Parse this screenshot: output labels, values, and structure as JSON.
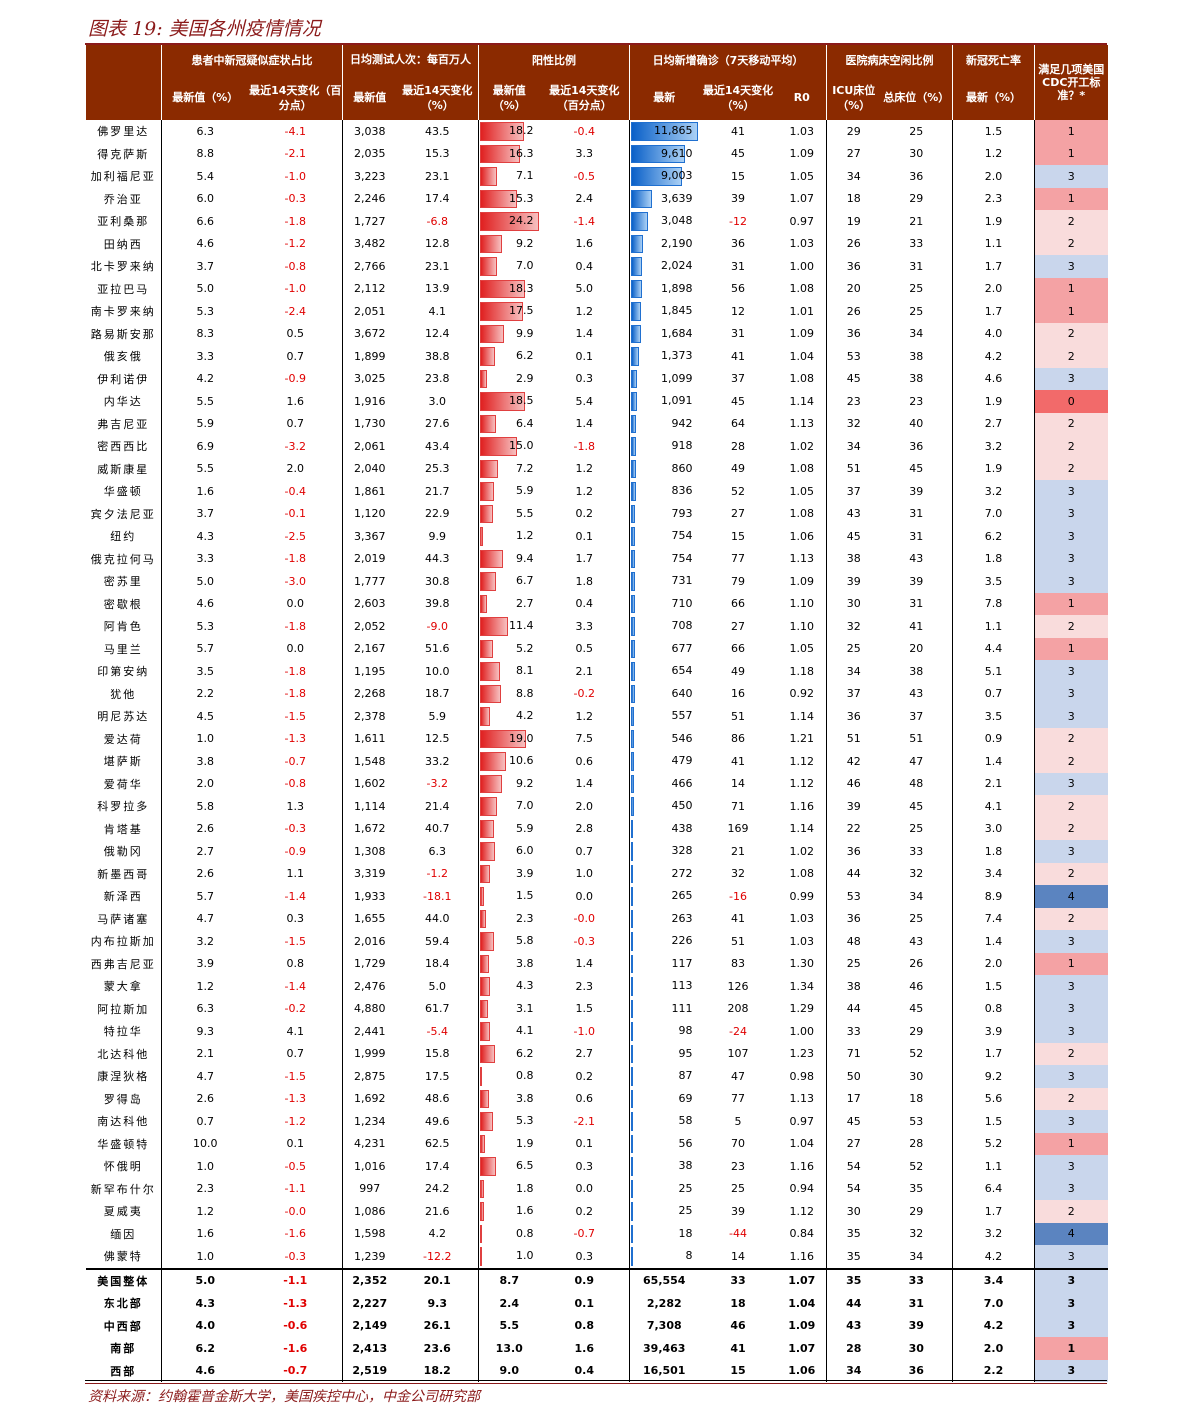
{
  "title": "图表 19:  美国各州疫情情况",
  "source": "资料来源：约翰霍普金斯大学，美国疾控中心，中金公司研究部",
  "groups": {
    "g1": "患者中新冠疑似症状占比",
    "g2": "日均测试人次：每百万人",
    "g3": "阳性比例",
    "g4": "日均新增确诊（7天移动平均）",
    "g5": "医院病床空闲比例",
    "g6": "新冠死亡率",
    "g7": "满足几项美国 CDC开工标准？*"
  },
  "subheaders": {
    "s1": "最新值（%）",
    "s2": "最近14天变化（百分点）",
    "s3": "最新值",
    "s4": "最近14天变化（%）",
    "s5": "最新值（%）",
    "s6": "最近14天变化（百分点）",
    "s7": "最新",
    "s8": "最近14天变化（%）",
    "s9": "R0",
    "s10": "ICU床位（%）",
    "s11": "总床位（%）",
    "s12": "最新（%）"
  },
  "colors": {
    "header": "#8b2a00",
    "negative": "#e00000",
    "score1": "#f4a2a4",
    "score2": "#f9dcdc",
    "score3": "#c9d6ec",
    "score0": "#f26a6a",
    "score4": "#5b84c0"
  },
  "rows": [
    [
      "佛罗里达",
      "6.3",
      "-4.1",
      "3,038",
      "43.5",
      "18.2",
      "-0.4",
      "11,865",
      "41",
      "1.03",
      "29",
      "25",
      "1.5",
      "1"
    ],
    [
      "得克萨斯",
      "8.8",
      "-2.1",
      "2,035",
      "15.3",
      "16.3",
      "3.3",
      "9,610",
      "45",
      "1.09",
      "27",
      "30",
      "1.2",
      "1"
    ],
    [
      "加利福尼亚",
      "5.4",
      "-1.0",
      "3,223",
      "23.1",
      "7.1",
      "-0.5",
      "9,003",
      "15",
      "1.05",
      "34",
      "36",
      "2.0",
      "3"
    ],
    [
      "乔治亚",
      "6.0",
      "-0.3",
      "2,246",
      "17.4",
      "15.3",
      "2.4",
      "3,639",
      "39",
      "1.07",
      "18",
      "29",
      "2.3",
      "1"
    ],
    [
      "亚利桑那",
      "6.6",
      "-1.8",
      "1,727",
      "-6.8",
      "24.2",
      "-1.4",
      "3,048",
      "-12",
      "0.97",
      "19",
      "21",
      "1.9",
      "2"
    ],
    [
      "田纳西",
      "4.6",
      "-1.2",
      "3,482",
      "12.8",
      "9.2",
      "1.6",
      "2,190",
      "36",
      "1.03",
      "26",
      "33",
      "1.1",
      "2"
    ],
    [
      "北卡罗来纳",
      "3.7",
      "-0.8",
      "2,766",
      "23.1",
      "7.0",
      "0.4",
      "2,024",
      "31",
      "1.00",
      "36",
      "31",
      "1.7",
      "3"
    ],
    [
      "亚拉巴马",
      "5.0",
      "-1.0",
      "2,112",
      "13.9",
      "18.3",
      "5.0",
      "1,898",
      "56",
      "1.08",
      "20",
      "25",
      "2.0",
      "1"
    ],
    [
      "南卡罗来纳",
      "5.3",
      "-2.4",
      "2,051",
      "4.1",
      "17.5",
      "1.2",
      "1,845",
      "12",
      "1.01",
      "26",
      "25",
      "1.7",
      "1"
    ],
    [
      "路易斯安那",
      "8.3",
      "0.5",
      "3,672",
      "12.4",
      "9.9",
      "1.4",
      "1,684",
      "31",
      "1.09",
      "36",
      "34",
      "4.0",
      "2"
    ],
    [
      "俄亥俄",
      "3.3",
      "0.7",
      "1,899",
      "38.8",
      "6.2",
      "0.1",
      "1,373",
      "41",
      "1.04",
      "53",
      "38",
      "4.2",
      "2"
    ],
    [
      "伊利诺伊",
      "4.2",
      "-0.9",
      "3,025",
      "23.8",
      "2.9",
      "0.3",
      "1,099",
      "37",
      "1.08",
      "45",
      "38",
      "4.6",
      "3"
    ],
    [
      "内华达",
      "5.5",
      "1.6",
      "1,916",
      "3.0",
      "18.5",
      "5.4",
      "1,091",
      "45",
      "1.14",
      "23",
      "23",
      "1.9",
      "0"
    ],
    [
      "弗吉尼亚",
      "5.9",
      "0.7",
      "1,730",
      "27.6",
      "6.4",
      "1.4",
      "942",
      "64",
      "1.13",
      "32",
      "40",
      "2.7",
      "2"
    ],
    [
      "密西西比",
      "6.9",
      "-3.2",
      "2,061",
      "43.4",
      "15.0",
      "-1.8",
      "918",
      "28",
      "1.02",
      "34",
      "36",
      "3.2",
      "2"
    ],
    [
      "威斯康星",
      "5.5",
      "2.0",
      "2,040",
      "25.3",
      "7.2",
      "1.2",
      "860",
      "49",
      "1.08",
      "51",
      "45",
      "1.9",
      "2"
    ],
    [
      "华盛顿",
      "1.6",
      "-0.4",
      "1,861",
      "21.7",
      "5.9",
      "1.2",
      "836",
      "52",
      "1.05",
      "37",
      "39",
      "3.2",
      "3"
    ],
    [
      "宾夕法尼亚",
      "3.7",
      "-0.1",
      "1,120",
      "22.9",
      "5.5",
      "0.2",
      "793",
      "27",
      "1.08",
      "43",
      "31",
      "7.0",
      "3"
    ],
    [
      "纽约",
      "4.3",
      "-2.5",
      "3,367",
      "9.9",
      "1.2",
      "0.1",
      "754",
      "15",
      "1.06",
      "45",
      "31",
      "6.2",
      "3"
    ],
    [
      "俄克拉何马",
      "3.3",
      "-1.8",
      "2,019",
      "44.3",
      "9.4",
      "1.7",
      "754",
      "77",
      "1.13",
      "38",
      "43",
      "1.8",
      "3"
    ],
    [
      "密苏里",
      "5.0",
      "-3.0",
      "1,777",
      "30.8",
      "6.7",
      "1.8",
      "731",
      "79",
      "1.09",
      "39",
      "39",
      "3.5",
      "3"
    ],
    [
      "密歇根",
      "4.6",
      "0.0",
      "2,603",
      "39.8",
      "2.7",
      "0.4",
      "710",
      "66",
      "1.10",
      "30",
      "31",
      "7.8",
      "1"
    ],
    [
      "阿肯色",
      "5.3",
      "-1.8",
      "2,052",
      "-9.0",
      "11.4",
      "3.3",
      "708",
      "27",
      "1.10",
      "32",
      "41",
      "1.1",
      "2"
    ],
    [
      "马里兰",
      "5.7",
      "0.0",
      "2,167",
      "51.6",
      "5.2",
      "0.5",
      "677",
      "66",
      "1.05",
      "25",
      "20",
      "4.4",
      "1"
    ],
    [
      "印第安纳",
      "3.5",
      "-1.8",
      "1,195",
      "10.0",
      "8.1",
      "2.1",
      "654",
      "49",
      "1.18",
      "34",
      "38",
      "5.1",
      "3"
    ],
    [
      "犹他",
      "2.2",
      "-1.8",
      "2,268",
      "18.7",
      "8.8",
      "-0.2",
      "640",
      "16",
      "0.92",
      "37",
      "43",
      "0.7",
      "3"
    ],
    [
      "明尼苏达",
      "4.5",
      "-1.5",
      "2,378",
      "5.9",
      "4.2",
      "1.2",
      "557",
      "51",
      "1.14",
      "36",
      "37",
      "3.5",
      "3"
    ],
    [
      "爱达荷",
      "1.0",
      "-1.3",
      "1,611",
      "12.5",
      "19.0",
      "7.5",
      "546",
      "86",
      "1.21",
      "51",
      "51",
      "0.9",
      "2"
    ],
    [
      "堪萨斯",
      "3.8",
      "-0.7",
      "1,548",
      "33.2",
      "10.6",
      "0.6",
      "479",
      "41",
      "1.12",
      "42",
      "47",
      "1.4",
      "2"
    ],
    [
      "爱荷华",
      "2.0",
      "-0.8",
      "1,602",
      "-3.2",
      "9.2",
      "1.4",
      "466",
      "14",
      "1.12",
      "46",
      "48",
      "2.1",
      "3"
    ],
    [
      "科罗拉多",
      "5.8",
      "1.3",
      "1,114",
      "21.4",
      "7.0",
      "2.0",
      "450",
      "71",
      "1.16",
      "39",
      "45",
      "4.1",
      "2"
    ],
    [
      "肯塔基",
      "2.6",
      "-0.3",
      "1,672",
      "40.7",
      "5.9",
      "2.8",
      "438",
      "169",
      "1.14",
      "22",
      "25",
      "3.0",
      "2"
    ],
    [
      "俄勒冈",
      "2.7",
      "-0.9",
      "1,308",
      "6.3",
      "6.0",
      "0.7",
      "328",
      "21",
      "1.02",
      "36",
      "33",
      "1.8",
      "3"
    ],
    [
      "新墨西哥",
      "2.6",
      "1.1",
      "3,319",
      "-1.2",
      "3.9",
      "1.0",
      "272",
      "32",
      "1.08",
      "44",
      "32",
      "3.4",
      "2"
    ],
    [
      "新泽西",
      "5.7",
      "-1.4",
      "1,933",
      "-18.1",
      "1.5",
      "0.0",
      "265",
      "-16",
      "0.99",
      "53",
      "34",
      "8.9",
      "4"
    ],
    [
      "马萨诸塞",
      "4.7",
      "0.3",
      "1,655",
      "44.0",
      "2.3",
      "-0.0",
      "263",
      "41",
      "1.03",
      "36",
      "25",
      "7.4",
      "2"
    ],
    [
      "内布拉斯加",
      "3.2",
      "-1.5",
      "2,016",
      "59.4",
      "5.8",
      "-0.3",
      "226",
      "51",
      "1.03",
      "48",
      "43",
      "1.4",
      "3"
    ],
    [
      "西弗吉尼亚",
      "3.9",
      "0.8",
      "1,729",
      "18.4",
      "3.8",
      "1.4",
      "117",
      "83",
      "1.30",
      "25",
      "26",
      "2.0",
      "1"
    ],
    [
      "蒙大拿",
      "1.2",
      "-1.4",
      "2,476",
      "5.0",
      "4.3",
      "2.3",
      "113",
      "126",
      "1.34",
      "38",
      "46",
      "1.5",
      "3"
    ],
    [
      "阿拉斯加",
      "6.3",
      "-0.2",
      "4,880",
      "61.7",
      "3.1",
      "1.5",
      "111",
      "208",
      "1.29",
      "44",
      "45",
      "0.8",
      "3"
    ],
    [
      "特拉华",
      "9.3",
      "4.1",
      "2,441",
      "-5.4",
      "4.1",
      "-1.0",
      "98",
      "-24",
      "1.00",
      "33",
      "29",
      "3.9",
      "3"
    ],
    [
      "北达科他",
      "2.1",
      "0.7",
      "1,999",
      "15.8",
      "6.2",
      "2.7",
      "95",
      "107",
      "1.23",
      "71",
      "52",
      "1.7",
      "2"
    ],
    [
      "康涅狄格",
      "4.7",
      "-1.5",
      "2,875",
      "17.5",
      "0.8",
      "0.2",
      "87",
      "47",
      "0.98",
      "50",
      "30",
      "9.2",
      "3"
    ],
    [
      "罗得岛",
      "2.6",
      "-1.3",
      "1,692",
      "48.6",
      "3.8",
      "0.6",
      "69",
      "77",
      "1.13",
      "17",
      "18",
      "5.6",
      "2"
    ],
    [
      "南达科他",
      "0.7",
      "-1.2",
      "1,234",
      "49.6",
      "5.3",
      "-2.1",
      "58",
      "5",
      "0.97",
      "45",
      "53",
      "1.5",
      "3"
    ],
    [
      "华盛顿特",
      "10.0",
      "0.1",
      "4,231",
      "62.5",
      "1.9",
      "0.1",
      "56",
      "70",
      "1.04",
      "27",
      "28",
      "5.2",
      "1"
    ],
    [
      "怀俄明",
      "1.0",
      "-0.5",
      "1,016",
      "17.4",
      "6.5",
      "0.3",
      "38",
      "23",
      "1.16",
      "54",
      "52",
      "1.1",
      "3"
    ],
    [
      "新罕布什尔",
      "2.3",
      "-1.1",
      "997",
      "24.2",
      "1.8",
      "0.0",
      "25",
      "25",
      "0.94",
      "54",
      "35",
      "6.4",
      "3"
    ],
    [
      "夏威夷",
      "1.2",
      "-0.0",
      "1,086",
      "21.6",
      "1.6",
      "0.2",
      "25",
      "39",
      "1.12",
      "30",
      "29",
      "1.7",
      "2"
    ],
    [
      "缅因",
      "1.6",
      "-1.6",
      "1,598",
      "4.2",
      "0.8",
      "-0.7",
      "18",
      "-44",
      "0.84",
      "35",
      "32",
      "3.2",
      "4"
    ],
    [
      "佛蒙特",
      "1.0",
      "-0.3",
      "1,239",
      "-12.2",
      "1.0",
      "0.3",
      "8",
      "14",
      "1.16",
      "35",
      "34",
      "4.2",
      "3"
    ]
  ],
  "summary": [
    [
      "美国整体",
      "5.0",
      "-1.1",
      "2,352",
      "20.1",
      "8.7",
      "0.9",
      "65,554",
      "33",
      "1.07",
      "35",
      "33",
      "3.4",
      "3"
    ],
    [
      "东北部",
      "4.3",
      "-1.3",
      "2,227",
      "9.3",
      "2.4",
      "0.1",
      "2,282",
      "18",
      "1.04",
      "44",
      "31",
      "7.0",
      "3"
    ],
    [
      "中西部",
      "4.0",
      "-0.6",
      "2,149",
      "26.1",
      "5.5",
      "0.8",
      "7,308",
      "46",
      "1.09",
      "43",
      "39",
      "4.2",
      "3"
    ],
    [
      "南部",
      "6.2",
      "-1.6",
      "2,413",
      "23.6",
      "13.0",
      "1.6",
      "39,463",
      "41",
      "1.07",
      "28",
      "30",
      "2.0",
      "1"
    ],
    [
      "西部",
      "4.6",
      "-0.7",
      "2,519",
      "18.2",
      "9.0",
      "0.4",
      "16,501",
      "15",
      "1.06",
      "34",
      "36",
      "2.2",
      "3"
    ]
  ]
}
